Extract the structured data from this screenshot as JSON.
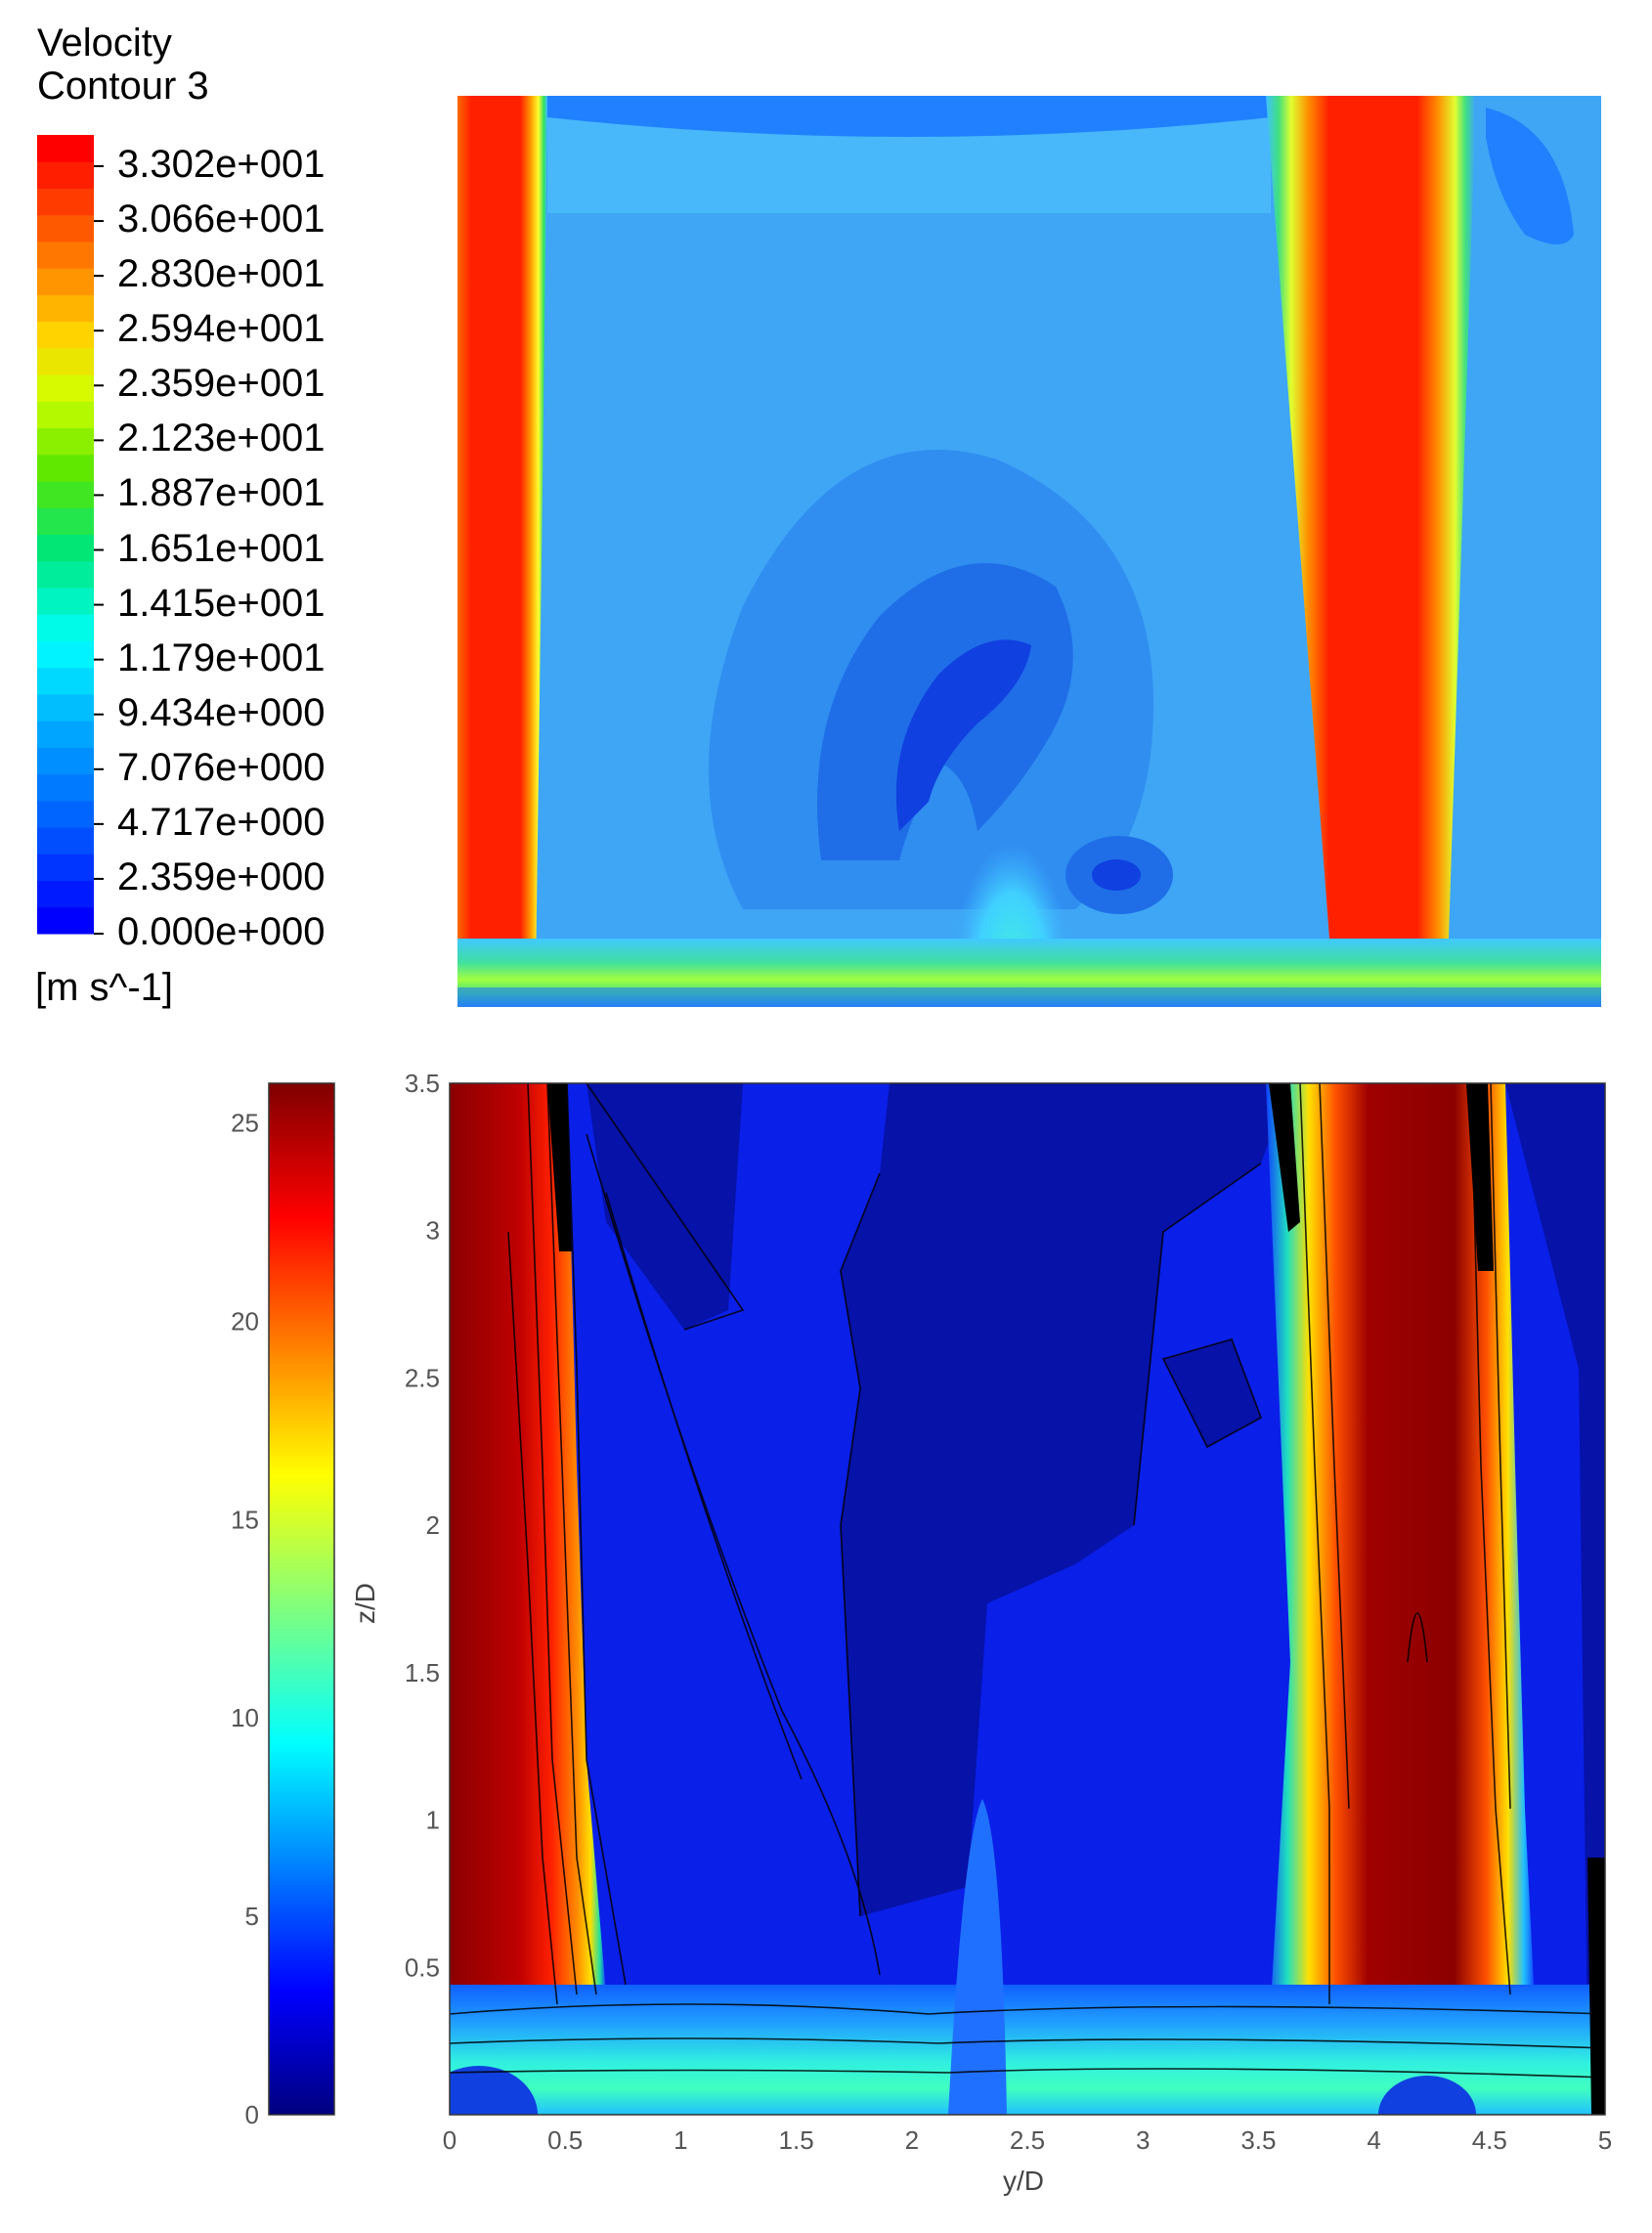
{
  "top_legend": {
    "title_line1": "Velocity",
    "title_line2": "Contour 3",
    "units": "[m s^-1]",
    "ticks": [
      "3.302e+001",
      "3.066e+001",
      "2.830e+001",
      "2.594e+001",
      "2.359e+001",
      "2.123e+001",
      "1.887e+001",
      "1.651e+001",
      "1.415e+001",
      "1.179e+001",
      "9.434e+000",
      "7.076e+000",
      "4.717e+000",
      "2.359e+000",
      "0.000e+000"
    ]
  },
  "chart_data": [
    {
      "type": "heatmap",
      "title": "",
      "colormap": "jet",
      "value_range": [
        0,
        33.02
      ],
      "units": "[m s^-1]",
      "description_values": "CFD velocity contour; high-velocity jets at left edge and near right third, low-velocity recirculation in center"
    },
    {
      "type": "heatmap",
      "title": "",
      "xlabel": "y/D",
      "ylabel": "z/D",
      "xlim": [
        0,
        5
      ],
      "ylim": [
        0,
        3.5
      ],
      "x_ticks": [
        "0",
        "0.5",
        "1",
        "1.5",
        "2",
        "2.5",
        "3",
        "3.5",
        "4",
        "4.5",
        "5"
      ],
      "y_ticks": [
        "0.5",
        "1",
        "1.5",
        "2",
        "2.5",
        "3",
        "3.5"
      ],
      "colorbar_range": [
        0,
        26
      ],
      "colorbar_ticks": [
        "0",
        "5",
        "10",
        "15",
        "20",
        "25"
      ],
      "colormap": "jet",
      "colors": {
        "dark_red": "#800000",
        "red": "#ff0000",
        "yellow": "#ffff00",
        "cyan": "#00ffff",
        "blue": "#0000ff",
        "dark_blue": "#000080"
      }
    }
  ]
}
